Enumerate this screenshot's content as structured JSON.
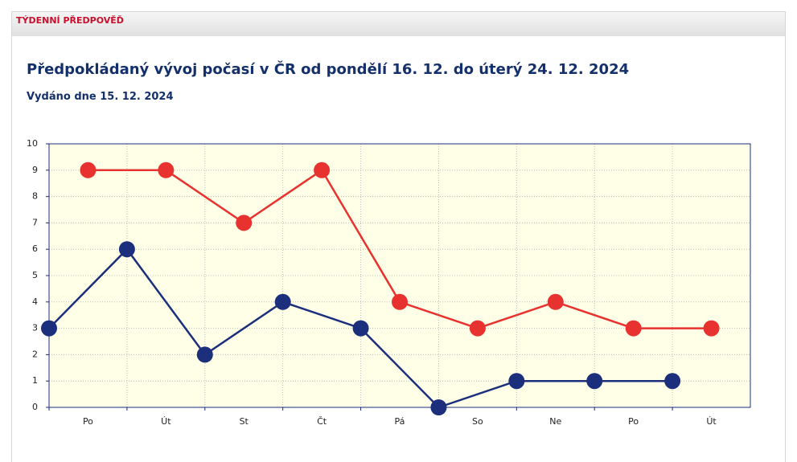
{
  "header": {
    "title": "TÝDENNÍ PŘEDPOVĚĎ"
  },
  "chart_data": {
    "type": "line",
    "title": "Předpokládaný vývoj počasí v ČR od pondělí 16. 12. do úterý 24. 12. 2024",
    "subtitle": "Vydáno dne 15. 12. 2024",
    "categories": [
      "Po",
      "Út",
      "St",
      "Čt",
      "Pá",
      "So",
      "Ne",
      "Po",
      "Út"
    ],
    "series": [
      {
        "color": "#e8322f",
        "align": "center",
        "values": [
          9,
          9,
          7,
          9,
          4,
          3,
          4,
          3,
          3
        ]
      },
      {
        "color": "#1b2f7c",
        "align": "edge",
        "values": [
          3,
          6,
          2,
          4,
          3,
          0,
          1,
          1,
          1
        ]
      }
    ],
    "ylim": [
      0,
      10
    ],
    "yticks": [
      0,
      1,
      2,
      3,
      4,
      5,
      6,
      7,
      8,
      9,
      10
    ],
    "grid": true
  }
}
